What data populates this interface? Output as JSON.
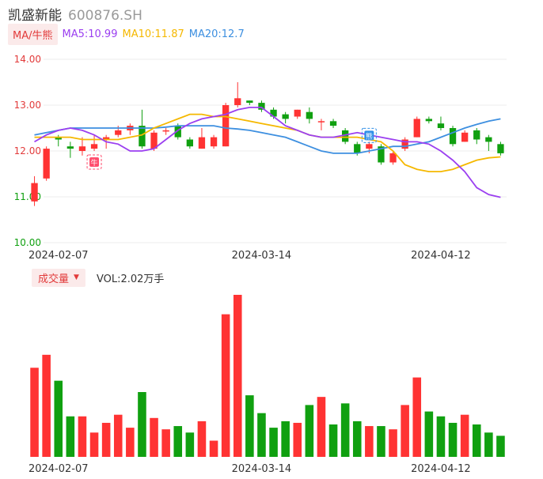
{
  "header": {
    "name": "凯盛新能",
    "code": "600876.SH"
  },
  "ma_legend": {
    "mode_label": "MA/牛熊",
    "items": [
      {
        "label": "MA5:10.99",
        "color": "#9b3ff0"
      },
      {
        "label": "MA10:11.87",
        "color": "#f5b800"
      },
      {
        "label": "MA20:12.7",
        "color": "#3d8fe0"
      }
    ]
  },
  "volume_legend": {
    "mode_label": "成交量",
    "caret": "▼",
    "value_text": "VOL:2.02万手"
  },
  "colors": {
    "up": "#ff3333",
    "down": "#10a010",
    "grid": "#eeeeee",
    "axis_label": "#e23b3b"
  },
  "markers": [
    {
      "label": "牛",
      "index": 5,
      "color": "#ff4d6d"
    },
    {
      "label": "熊",
      "index": 28,
      "color": "#2e8fe8"
    }
  ],
  "chart_data": {
    "type": "candlestick",
    "y_axis": {
      "ticks": [
        "14.00",
        "13.00",
        "12.00",
        "11.00",
        "10.00"
      ],
      "min": 10,
      "max": 14
    },
    "x_ticks": [
      {
        "label": "2024-02-07",
        "index": 2
      },
      {
        "label": "2024-03-14",
        "index": 19
      },
      {
        "label": "2024-04-12",
        "index": 34
      }
    ],
    "candles": [
      {
        "o": 10.9,
        "c": 11.3,
        "h": 11.45,
        "l": 10.8
      },
      {
        "o": 11.4,
        "c": 12.05,
        "h": 12.1,
        "l": 11.35
      },
      {
        "o": 12.3,
        "c": 12.25,
        "h": 12.35,
        "l": 12.1
      },
      {
        "o": 12.1,
        "c": 12.05,
        "h": 12.2,
        "l": 11.85
      },
      {
        "o": 12.0,
        "c": 12.1,
        "h": 12.3,
        "l": 11.9
      },
      {
        "o": 12.05,
        "c": 12.15,
        "h": 12.35,
        "l": 12.0
      },
      {
        "o": 12.25,
        "c": 12.3,
        "h": 12.35,
        "l": 12.05
      },
      {
        "o": 12.35,
        "c": 12.45,
        "h": 12.55,
        "l": 12.3
      },
      {
        "o": 12.45,
        "c": 12.55,
        "h": 12.6,
        "l": 12.35
      },
      {
        "o": 12.55,
        "c": 12.1,
        "h": 12.9,
        "l": 12.05
      },
      {
        "o": 12.05,
        "c": 12.4,
        "h": 12.45,
        "l": 12.0
      },
      {
        "o": 12.45,
        "c": 12.45,
        "h": 12.5,
        "l": 12.35
      },
      {
        "o": 12.55,
        "c": 12.3,
        "h": 12.6,
        "l": 12.25
      },
      {
        "o": 12.25,
        "c": 12.1,
        "h": 12.3,
        "l": 12.05
      },
      {
        "o": 12.05,
        "c": 12.3,
        "h": 12.5,
        "l": 12.05
      },
      {
        "o": 12.1,
        "c": 12.3,
        "h": 12.35,
        "l": 12.05
      },
      {
        "o": 12.1,
        "c": 13.0,
        "h": 13.05,
        "l": 12.1
      },
      {
        "o": 13.0,
        "c": 13.15,
        "h": 13.5,
        "l": 12.95
      },
      {
        "o": 13.1,
        "c": 13.05,
        "h": 13.1,
        "l": 13.0
      },
      {
        "o": 13.05,
        "c": 12.9,
        "h": 13.1,
        "l": 12.85
      },
      {
        "o": 12.9,
        "c": 12.75,
        "h": 12.95,
        "l": 12.7
      },
      {
        "o": 12.8,
        "c": 12.7,
        "h": 12.85,
        "l": 12.6
      },
      {
        "o": 12.75,
        "c": 12.9,
        "h": 12.9,
        "l": 12.7
      },
      {
        "o": 12.85,
        "c": 12.7,
        "h": 12.95,
        "l": 12.6
      },
      {
        "o": 12.65,
        "c": 12.65,
        "h": 12.7,
        "l": 12.45
      },
      {
        "o": 12.65,
        "c": 12.55,
        "h": 12.7,
        "l": 12.5
      },
      {
        "o": 12.45,
        "c": 12.2,
        "h": 12.5,
        "l": 12.15
      },
      {
        "o": 12.15,
        "c": 11.95,
        "h": 12.2,
        "l": 11.9
      },
      {
        "o": 12.05,
        "c": 12.15,
        "h": 12.2,
        "l": 11.95
      },
      {
        "o": 12.1,
        "c": 11.75,
        "h": 12.15,
        "l": 11.7
      },
      {
        "o": 11.75,
        "c": 11.95,
        "h": 12.0,
        "l": 11.7
      },
      {
        "o": 12.05,
        "c": 12.25,
        "h": 12.3,
        "l": 12.0
      },
      {
        "o": 12.3,
        "c": 12.7,
        "h": 12.75,
        "l": 12.3
      },
      {
        "o": 12.7,
        "c": 12.65,
        "h": 12.75,
        "l": 12.6
      },
      {
        "o": 12.6,
        "c": 12.5,
        "h": 12.75,
        "l": 12.45
      },
      {
        "o": 12.5,
        "c": 12.15,
        "h": 12.55,
        "l": 12.1
      },
      {
        "o": 12.2,
        "c": 12.4,
        "h": 12.45,
        "l": 12.2
      },
      {
        "o": 12.45,
        "c": 12.25,
        "h": 12.5,
        "l": 12.15
      },
      {
        "o": 12.3,
        "c": 12.2,
        "h": 12.35,
        "l": 12.0
      },
      {
        "o": 12.15,
        "c": 11.95,
        "h": 12.2,
        "l": 11.9
      }
    ],
    "ma5": [
      12.2,
      12.35,
      12.45,
      12.5,
      12.45,
      12.35,
      12.2,
      12.15,
      12.0,
      12.0,
      12.05,
      12.25,
      12.45,
      12.6,
      12.7,
      12.75,
      12.8,
      12.9,
      12.95,
      12.95,
      12.75,
      12.55,
      12.45,
      12.35,
      12.3,
      12.3,
      12.35,
      12.4,
      12.35,
      12.3,
      12.25,
      12.2,
      12.2,
      12.15,
      12.0,
      11.8,
      11.55,
      11.2,
      11.05,
      10.99
    ],
    "ma10": [
      12.3,
      12.3,
      12.3,
      12.3,
      12.25,
      12.25,
      12.25,
      12.25,
      12.3,
      12.35,
      12.5,
      12.6,
      12.7,
      12.8,
      12.8,
      12.75,
      12.75,
      12.7,
      12.65,
      12.6,
      12.55,
      12.5,
      12.45,
      12.35,
      12.3,
      12.3,
      12.3,
      12.3,
      12.25,
      12.2,
      12.0,
      11.7,
      11.6,
      11.55,
      11.55,
      11.6,
      11.7,
      11.8,
      11.85,
      11.87
    ],
    "ma20": [
      12.35,
      12.4,
      12.45,
      12.5,
      12.5,
      12.5,
      12.5,
      12.5,
      12.5,
      12.5,
      12.5,
      12.52,
      12.55,
      12.55,
      12.55,
      12.55,
      12.5,
      12.48,
      12.45,
      12.4,
      12.35,
      12.3,
      12.2,
      12.1,
      12.0,
      11.95,
      11.95,
      11.95,
      12.0,
      12.05,
      12.1,
      12.1,
      12.15,
      12.2,
      12.3,
      12.4,
      12.5,
      12.58,
      12.65,
      12.7
    ],
    "volume": [
      0.55,
      0.63,
      0.47,
      0.25,
      0.25,
      0.15,
      0.21,
      0.26,
      0.18,
      0.4,
      0.24,
      0.17,
      0.19,
      0.15,
      0.22,
      0.1,
      0.88,
      1.0,
      0.38,
      0.27,
      0.18,
      0.22,
      0.21,
      0.32,
      0.37,
      0.2,
      0.33,
      0.22,
      0.19,
      0.19,
      0.17,
      0.32,
      0.49,
      0.28,
      0.25,
      0.21,
      0.26,
      0.2,
      0.15,
      0.13
    ]
  }
}
